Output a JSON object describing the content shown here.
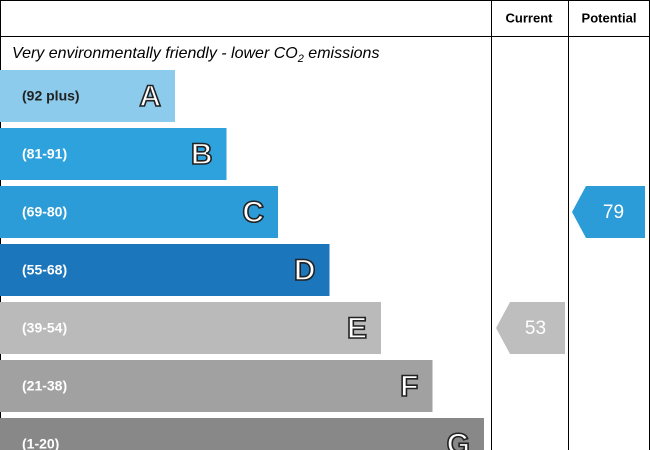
{
  "header": {
    "current": "Current",
    "potential": "Potential"
  },
  "subtitle": {
    "text": "Very environmentally friendly - lower CO",
    "subscript": "2",
    "suffix": " emissions"
  },
  "bands": [
    {
      "range": "(92 plus)",
      "letter": "A",
      "color": "#8ccbec"
    },
    {
      "range": "(81-91)",
      "letter": "B",
      "color": "#2ea2dc"
    },
    {
      "range": "(69-80)",
      "letter": "C",
      "color": "#2b9cd8"
    },
    {
      "range": "(55-68)",
      "letter": "D",
      "color": "#1b76bc"
    },
    {
      "range": "(39-54)",
      "letter": "E",
      "color": "#bababa"
    },
    {
      "range": "(21-38)",
      "letter": "F",
      "color": "#a1a1a1"
    },
    {
      "range": "(1-20)",
      "letter": "G",
      "color": "#888888"
    }
  ],
  "current": {
    "value": 53,
    "color": "#bebebe"
  },
  "potential": {
    "value": 79,
    "color": "#2b9cd8"
  }
}
